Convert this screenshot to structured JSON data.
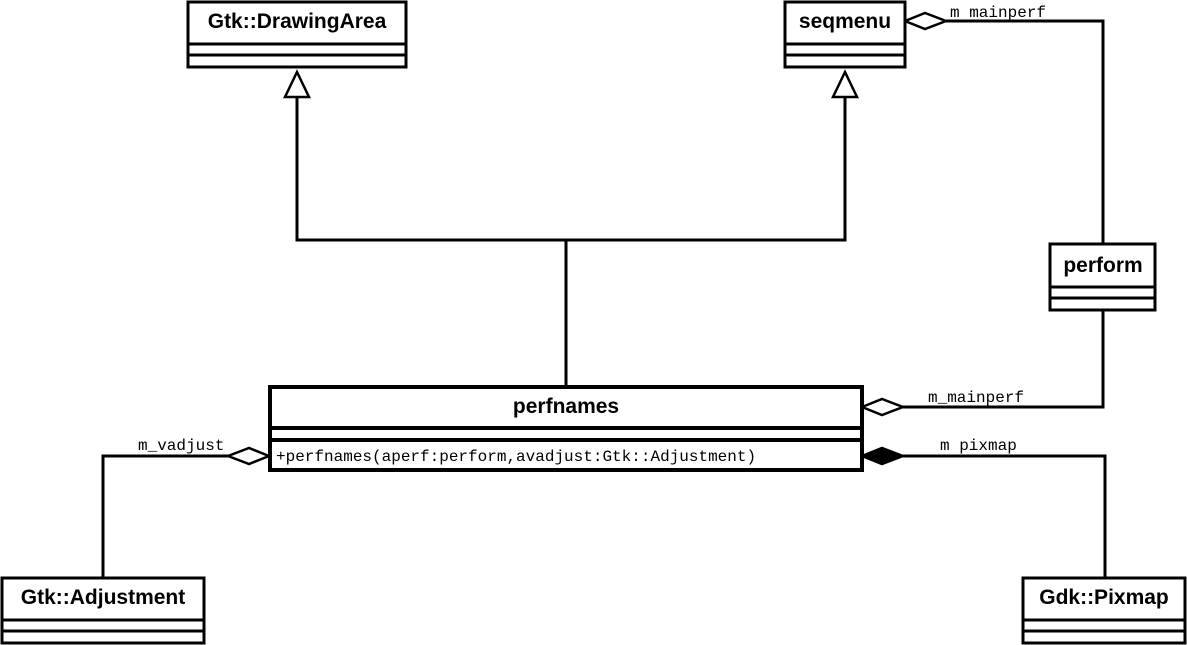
{
  "diagram": {
    "classes": {
      "drawing_area": {
        "name": "Gtk::DrawingArea"
      },
      "seqmenu": {
        "name": "seqmenu"
      },
      "perform": {
        "name": "perform"
      },
      "perfnames": {
        "name": "perfnames",
        "operation": "+perfnames(aperf:perform,avadjust:Gtk::Adjustment)"
      },
      "adjustment": {
        "name": "Gtk::Adjustment"
      },
      "pixmap": {
        "name": "Gdk::Pixmap"
      }
    },
    "associations": {
      "seqmenu_mainperf": "m mainperf",
      "perfnames_mainperf": "m_mainperf",
      "perfnames_vadjust": "m_vadjust",
      "perfnames_pixmap": "m pixmap"
    }
  }
}
